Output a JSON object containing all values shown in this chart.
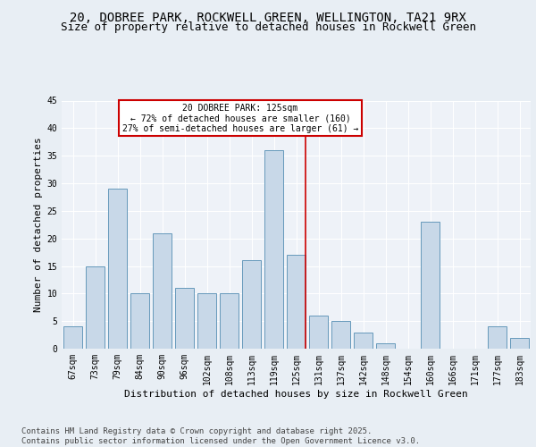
{
  "title": "20, DOBREE PARK, ROCKWELL GREEN, WELLINGTON, TA21 9RX",
  "subtitle": "Size of property relative to detached houses in Rockwell Green",
  "xlabel": "Distribution of detached houses by size in Rockwell Green",
  "ylabel": "Number of detached properties",
  "categories": [
    "67sqm",
    "73sqm",
    "79sqm",
    "84sqm",
    "90sqm",
    "96sqm",
    "102sqm",
    "108sqm",
    "113sqm",
    "119sqm",
    "125sqm",
    "131sqm",
    "137sqm",
    "142sqm",
    "148sqm",
    "154sqm",
    "160sqm",
    "166sqm",
    "171sqm",
    "177sqm",
    "183sqm"
  ],
  "values": [
    4,
    15,
    29,
    10,
    21,
    11,
    10,
    10,
    16,
    36,
    17,
    6,
    5,
    3,
    1,
    0,
    23,
    0,
    0,
    4,
    2
  ],
  "bar_color": "#c8d8e8",
  "bar_edge_color": "#6699bb",
  "highlight_index": 10,
  "annotation_text": "20 DOBREE PARK: 125sqm\n← 72% of detached houses are smaller (160)\n27% of semi-detached houses are larger (61) →",
  "annotation_box_color": "#ffffff",
  "annotation_box_edge_color": "#cc0000",
  "vline_color": "#cc0000",
  "ylim": [
    0,
    45
  ],
  "yticks": [
    0,
    5,
    10,
    15,
    20,
    25,
    30,
    35,
    40,
    45
  ],
  "background_color": "#e8eef4",
  "plot_background_color": "#eef2f8",
  "grid_color": "#ffffff",
  "title_fontsize": 10,
  "subtitle_fontsize": 9,
  "tick_fontsize": 7,
  "axis_label_fontsize": 8,
  "footer_text": "Contains HM Land Registry data © Crown copyright and database right 2025.\nContains public sector information licensed under the Open Government Licence v3.0.",
  "footer_fontsize": 6.5
}
